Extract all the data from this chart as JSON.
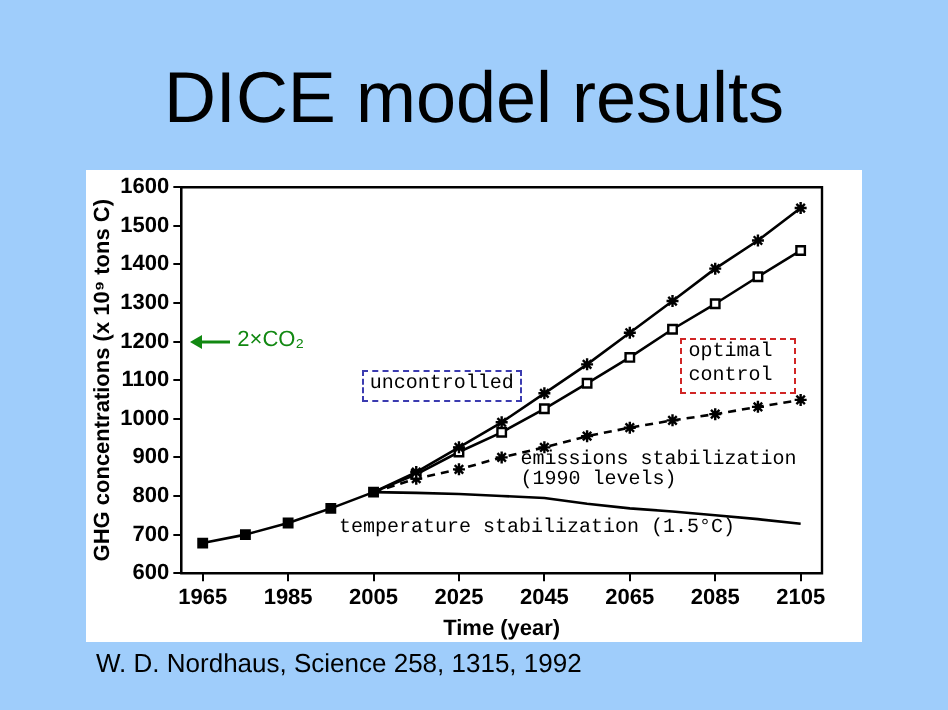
{
  "chart_data": {
    "type": "line",
    "title": "DICE model results",
    "xlabel": "Time (year)",
    "ylabel": "GHG concentrations (x 10⁹ tons C)",
    "xlim": [
      1960,
      2110
    ],
    "xticks": [
      1965,
      1985,
      2005,
      2025,
      2045,
      2065,
      2085,
      2105
    ],
    "ylim": [
      600,
      1600
    ],
    "yticks": [
      600,
      700,
      800,
      900,
      1000,
      1100,
      1200,
      1300,
      1400,
      1500,
      1600
    ],
    "grid": false,
    "legend": false,
    "series": [
      {
        "color": "#000000",
        "marker": "square",
        "line_style": "solid",
        "x": [
          1965,
          1975,
          1985,
          1995,
          2005
        ],
        "values": [
          678,
          700,
          730,
          768,
          810
        ]
      },
      {
        "name": "uncontrolled",
        "color": "#000000",
        "marker": "cross",
        "line_style": "solid",
        "x": [
          2005,
          2015,
          2025,
          2035,
          2045,
          2055,
          2065,
          2075,
          2085,
          2095,
          2105
        ],
        "values": [
          810,
          862,
          926,
          991,
          1066,
          1141,
          1223,
          1305,
          1389,
          1462,
          1546
        ]
      },
      {
        "name": "optimal control",
        "color": "#000000",
        "marker": "square",
        "line_style": "solid",
        "x": [
          2005,
          2015,
          2025,
          2035,
          2045,
          2055,
          2065,
          2075,
          2085,
          2095,
          2105
        ],
        "values": [
          810,
          856,
          914,
          965,
          1026,
          1092,
          1159,
          1232,
          1298,
          1368,
          1436
        ]
      },
      {
        "name": "emissions stabilization (1990 levels)",
        "color": "#000000",
        "marker": "cross",
        "line_style": "dashed",
        "x": [
          2005,
          2015,
          2025,
          2035,
          2045,
          2055,
          2065,
          2075,
          2085,
          2095,
          2105
        ],
        "values": [
          810,
          845,
          869,
          900,
          926,
          955,
          977,
          996,
          1012,
          1031,
          1049
        ]
      },
      {
        "name": "temperature stabilization (1.5°C)",
        "color": "#000000",
        "marker": "none",
        "line_style": "solid",
        "x": [
          2005,
          2015,
          2025,
          2035,
          2045,
          2055,
          2065,
          2075,
          2085,
          2095,
          2105
        ],
        "values": [
          810,
          808,
          805,
          800,
          795,
          780,
          768,
          760,
          750,
          740,
          728
        ]
      }
    ],
    "annotations": [
      "2×CO₂",
      "W. D. Nordhaus, Science 258, 1315, 1992"
    ]
  }
}
